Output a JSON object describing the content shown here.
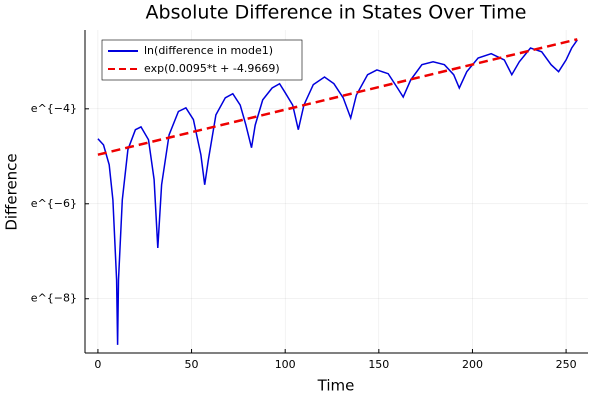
{
  "chart_data": {
    "type": "line",
    "title": "Absolute Difference in States Over Time",
    "xlabel": "Time",
    "ylabel": "Difference",
    "xlim": [
      -6.9,
      261.7
    ],
    "xticks": [
      0,
      50,
      100,
      150,
      200,
      250
    ],
    "ylim": [
      0.000107,
      0.0963
    ],
    "yscale": "log",
    "yticks": [
      {
        "value": 0.000335463,
        "label": "e^{−8}"
      },
      {
        "value": 0.00247875,
        "label": "e^{−6}"
      },
      {
        "value": 0.0183156,
        "label": "e^{−4}"
      }
    ],
    "grid": true,
    "legend": "top-left",
    "series": [
      {
        "name": "ln(difference in mode1)",
        "color": "#0000dd",
        "dash": "solid",
        "x": [
          0,
          3,
          6,
          8,
          10,
          10.5,
          11,
          13,
          16,
          20,
          23,
          27,
          30,
          32,
          34,
          38,
          43,
          47,
          51,
          55,
          57,
          59,
          63,
          68,
          72,
          76,
          79,
          82,
          84,
          88,
          93,
          97,
          100,
          104,
          107,
          110,
          115,
          121,
          126,
          131,
          135,
          138,
          144,
          149,
          155,
          160,
          163,
          167,
          173,
          179,
          185,
          190,
          193,
          197,
          203,
          210,
          217,
          221,
          225,
          231,
          237,
          242,
          246,
          250,
          253,
          256
        ],
        "values": [
          0.00975,
          0.00857,
          0.00563,
          0.00269,
          0.0005,
          0.000127,
          0.0005,
          0.00269,
          0.00775,
          0.0118,
          0.0125,
          0.00956,
          0.00413,
          0.000979,
          0.0037,
          0.0106,
          0.0173,
          0.0187,
          0.0146,
          0.00694,
          0.0037,
          0.00628,
          0.0161,
          0.0231,
          0.0252,
          0.0198,
          0.013,
          0.00807,
          0.013,
          0.0221,
          0.0284,
          0.0311,
          0.0257,
          0.0198,
          0.0118,
          0.0198,
          0.0305,
          0.0358,
          0.0311,
          0.0231,
          0.0151,
          0.0245,
          0.0376,
          0.0416,
          0.0384,
          0.0284,
          0.0235,
          0.0337,
          0.0464,
          0.0493,
          0.0464,
          0.0376,
          0.0284,
          0.04,
          0.0534,
          0.0584,
          0.0513,
          0.0376,
          0.0493,
          0.0659,
          0.0608,
          0.0464,
          0.04,
          0.0513,
          0.0659,
          0.0781
        ]
      },
      {
        "name": "exp(0.0095*t + -4.9669)",
        "color": "#ee0000",
        "dash": "dashed",
        "x": [
          0,
          64,
          128,
          192,
          256
        ],
        "values": [
          0.006967,
          0.01279,
          0.02349,
          0.04314,
          0.07925
        ]
      }
    ]
  }
}
